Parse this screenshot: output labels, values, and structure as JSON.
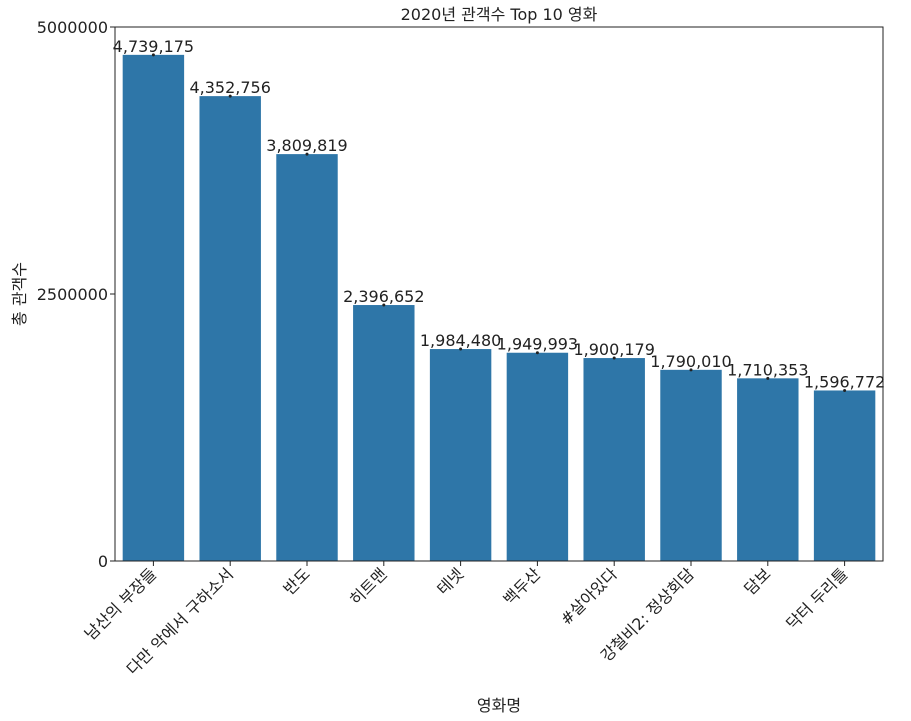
{
  "chart_data": {
    "type": "bar",
    "title": "2020년 관객수 Top 10 영화",
    "xlabel": "영화명",
    "ylabel": "총 관객수",
    "categories": [
      "남산의 부장들",
      "다만 악에서 구하소서",
      "반도",
      "히트맨",
      "테넷",
      "백두산",
      "#살아있다",
      "강철비2: 정상회담",
      "담보",
      "닥터 두리틀"
    ],
    "values": [
      4739175,
      4352756,
      3809819,
      2396652,
      1984480,
      1949993,
      1900179,
      1790010,
      1710353,
      1596772
    ],
    "value_labels": [
      "4,739,175",
      "4,352,756",
      "3,809,819",
      "2,396,652",
      "1,984,480",
      "1,949,993",
      "1,900,179",
      "1,790,010",
      "1,710,353",
      "1,596,772"
    ],
    "yticks": [
      0,
      2500000,
      5000000
    ],
    "ytick_labels": [
      "0",
      "2500000",
      "5000000"
    ],
    "ylim": [
      0,
      5000000
    ],
    "grid": false,
    "bar_color": "#2e76a8"
  }
}
